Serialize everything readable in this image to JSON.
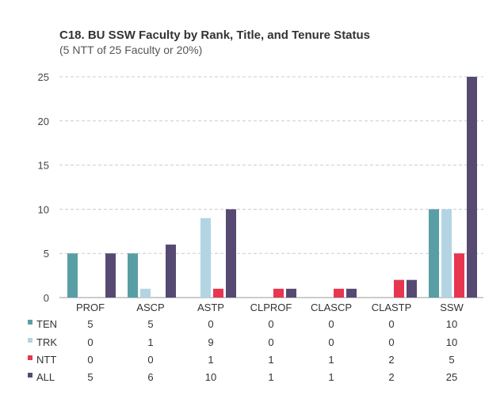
{
  "chart_data": {
    "type": "bar",
    "title": "C18. BU SSW Faculty by Rank, Title, and Tenure Status",
    "subtitle": "(5 NTT of 25 Faculty or 20%)",
    "categories": [
      "PROF",
      "ASCP",
      "ASTP",
      "CLPROF",
      "CLASCP",
      "CLASTP",
      "SSW"
    ],
    "ylim": [
      0,
      25
    ],
    "yticks": [
      "0",
      "5",
      "10",
      "15",
      "20",
      "25"
    ],
    "grid": true,
    "legend_position": "bottom-left table",
    "series": [
      {
        "name": "TEN",
        "color": "#5a9ea5",
        "values": [
          5,
          5,
          0,
          0,
          0,
          0,
          10
        ],
        "labels": [
          "5",
          "5",
          "0",
          "0",
          "0",
          "0",
          "10"
        ]
      },
      {
        "name": "TRK",
        "color": "#b3d5e3",
        "values": [
          0,
          1,
          9,
          0,
          0,
          0,
          10
        ],
        "labels": [
          "0",
          "1",
          "9",
          "0",
          "0",
          "0",
          "10"
        ]
      },
      {
        "name": "NTT",
        "color": "#e73650",
        "values": [
          0,
          0,
          1,
          1,
          1,
          2,
          5
        ],
        "labels": [
          "0",
          "0",
          "1",
          "1",
          "1",
          "2",
          "5"
        ]
      },
      {
        "name": "ALL",
        "color": "#574a72",
        "values": [
          5,
          6,
          10,
          1,
          1,
          2,
          25
        ],
        "labels": [
          "5",
          "6",
          "10",
          "1",
          "1",
          "2",
          "25"
        ]
      }
    ]
  }
}
